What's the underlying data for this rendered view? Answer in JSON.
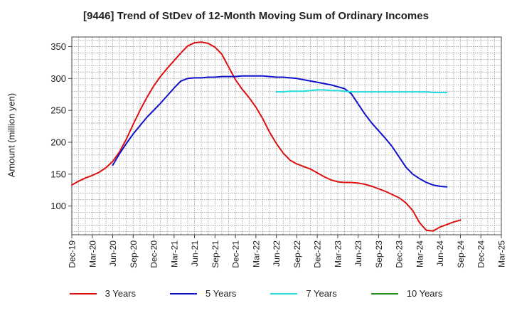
{
  "chart_data": {
    "type": "line",
    "title": "[9446]  Trend of StDev of 12-Month Moving Sum of Ordinary Incomes",
    "ylabel": "Amount (million yen)",
    "xlabel": "",
    "ylim": [
      55,
      365
    ],
    "yticks": [
      100,
      150,
      200,
      250,
      300,
      350
    ],
    "x_categories": [
      "Dec-19",
      "Mar-20",
      "Jun-20",
      "Sep-20",
      "Dec-20",
      "Mar-21",
      "Jun-21",
      "Sep-21",
      "Dec-21",
      "Mar-22",
      "Jun-22",
      "Sep-22",
      "Dec-22",
      "Mar-23",
      "Jun-23",
      "Sep-23",
      "Dec-23",
      "Mar-24",
      "Jun-24",
      "Sep-24",
      "Dec-24",
      "Mar-25"
    ],
    "grid": true,
    "legend_position": "bottom",
    "series": [
      {
        "name": "3 Years",
        "color": "#dd1111",
        "points": [
          [
            "Dec-19",
            133
          ],
          [
            "Jan-20",
            139
          ],
          [
            "Feb-20",
            144
          ],
          [
            "Mar-20",
            148
          ],
          [
            "Apr-20",
            153
          ],
          [
            "May-20",
            160
          ],
          [
            "Jun-20",
            170
          ],
          [
            "Jul-20",
            185
          ],
          [
            "Aug-20",
            205
          ],
          [
            "Sep-20",
            228
          ],
          [
            "Oct-20",
            250
          ],
          [
            "Nov-20",
            270
          ],
          [
            "Dec-20",
            288
          ],
          [
            "Jan-21",
            303
          ],
          [
            "Feb-21",
            316
          ],
          [
            "Mar-21",
            328
          ],
          [
            "Apr-21",
            340
          ],
          [
            "May-21",
            351
          ],
          [
            "Jun-21",
            356
          ],
          [
            "Jul-21",
            357
          ],
          [
            "Aug-21",
            355
          ],
          [
            "Sep-21",
            349
          ],
          [
            "Oct-21",
            338
          ],
          [
            "Nov-21",
            318
          ],
          [
            "Dec-21",
            298
          ],
          [
            "Jan-22",
            283
          ],
          [
            "Feb-22",
            270
          ],
          [
            "Mar-22",
            255
          ],
          [
            "Apr-22",
            237
          ],
          [
            "May-22",
            216
          ],
          [
            "Jun-22",
            198
          ],
          [
            "Jul-22",
            183
          ],
          [
            "Aug-22",
            172
          ],
          [
            "Sep-22",
            166
          ],
          [
            "Oct-22",
            162
          ],
          [
            "Nov-22",
            158
          ],
          [
            "Dec-22",
            152
          ],
          [
            "Jan-23",
            146
          ],
          [
            "Feb-23",
            141
          ],
          [
            "Mar-23",
            138
          ],
          [
            "Apr-23",
            137
          ],
          [
            "May-23",
            137
          ],
          [
            "Jun-23",
            136
          ],
          [
            "Jul-23",
            134
          ],
          [
            "Aug-23",
            131
          ],
          [
            "Sep-23",
            127
          ],
          [
            "Oct-23",
            123
          ],
          [
            "Nov-23",
            118
          ],
          [
            "Dec-23",
            113
          ],
          [
            "Jan-24",
            105
          ],
          [
            "Feb-24",
            93
          ],
          [
            "Mar-24",
            74
          ],
          [
            "Apr-24",
            62
          ],
          [
            "May-24",
            61
          ],
          [
            "Jun-24",
            67
          ],
          [
            "Jul-24",
            71
          ],
          [
            "Aug-24",
            75
          ],
          [
            "Sep-24",
            78
          ]
        ]
      },
      {
        "name": "5 Years",
        "color": "#1111cc",
        "points": [
          [
            "Jun-20",
            164
          ],
          [
            "Jul-20",
            182
          ],
          [
            "Aug-20",
            198
          ],
          [
            "Sep-20",
            213
          ],
          [
            "Oct-20",
            226
          ],
          [
            "Nov-20",
            239
          ],
          [
            "Dec-20",
            250
          ],
          [
            "Jan-21",
            261
          ],
          [
            "Feb-21",
            273
          ],
          [
            "Mar-21",
            285
          ],
          [
            "Apr-21",
            296
          ],
          [
            "May-21",
            300
          ],
          [
            "Jun-21",
            301
          ],
          [
            "Jul-21",
            301
          ],
          [
            "Aug-21",
            302
          ],
          [
            "Sep-21",
            302
          ],
          [
            "Oct-21",
            303
          ],
          [
            "Nov-21",
            303
          ],
          [
            "Dec-21",
            303
          ],
          [
            "Jan-22",
            304
          ],
          [
            "Feb-22",
            304
          ],
          [
            "Mar-22",
            304
          ],
          [
            "Apr-22",
            304
          ],
          [
            "May-22",
            303
          ],
          [
            "Jun-22",
            302
          ],
          [
            "Jul-22",
            302
          ],
          [
            "Aug-22",
            301
          ],
          [
            "Sep-22",
            300
          ],
          [
            "Oct-22",
            298
          ],
          [
            "Nov-22",
            296
          ],
          [
            "Dec-22",
            294
          ],
          [
            "Jan-23",
            292
          ],
          [
            "Feb-23",
            290
          ],
          [
            "Mar-23",
            287
          ],
          [
            "Apr-23",
            284
          ],
          [
            "May-23",
            276
          ],
          [
            "Jun-23",
            260
          ],
          [
            "Jul-23",
            244
          ],
          [
            "Aug-23",
            230
          ],
          [
            "Sep-23",
            218
          ],
          [
            "Oct-23",
            206
          ],
          [
            "Nov-23",
            193
          ],
          [
            "Dec-23",
            177
          ],
          [
            "Jan-24",
            161
          ],
          [
            "Feb-24",
            150
          ],
          [
            "Mar-24",
            143
          ],
          [
            "Apr-24",
            137
          ],
          [
            "May-24",
            133
          ],
          [
            "Jun-24",
            131
          ],
          [
            "Jul-24",
            130
          ]
        ]
      },
      {
        "name": "7 Years",
        "color": "#22dddd",
        "points": [
          [
            "Jun-22",
            279
          ],
          [
            "Jul-22",
            279
          ],
          [
            "Aug-22",
            280
          ],
          [
            "Sep-22",
            280
          ],
          [
            "Oct-22",
            280
          ],
          [
            "Nov-22",
            281
          ],
          [
            "Dec-22",
            282
          ],
          [
            "Jan-23",
            282
          ],
          [
            "Feb-23",
            281
          ],
          [
            "Mar-23",
            281
          ],
          [
            "Apr-23",
            280
          ],
          [
            "May-23",
            279
          ],
          [
            "Jun-23",
            279
          ],
          [
            "Jul-23",
            279
          ],
          [
            "Aug-23",
            279
          ],
          [
            "Sep-23",
            279
          ],
          [
            "Oct-23",
            279
          ],
          [
            "Nov-23",
            279
          ],
          [
            "Dec-23",
            279
          ],
          [
            "Jan-24",
            279
          ],
          [
            "Feb-24",
            279
          ],
          [
            "Mar-24",
            279
          ],
          [
            "Apr-24",
            279
          ],
          [
            "May-24",
            278
          ],
          [
            "Jun-24",
            278
          ],
          [
            "Jul-24",
            278
          ]
        ]
      },
      {
        "name": "10 Years",
        "color": "#228822",
        "points": []
      }
    ]
  }
}
